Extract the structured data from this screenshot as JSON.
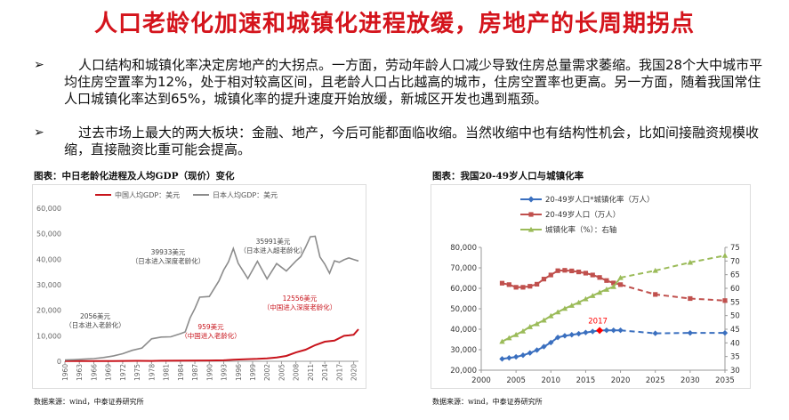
{
  "title": "人口老龄化加速和城镇化进程放缓，房地产的长周期拐点",
  "bullets": [
    {
      "mark": "➢",
      "text": "人口结构和城镇化率决定房地产的大拐点。一方面，劳动年龄人口减少导致住房总量需求萎缩。我国28个大中城市平均住房空置率为12%，处于相对较高区间，且老龄人口占比越高的城市，住房空置率也更高。另一方面，随着我国常住人口城镇化率达到65%，城镇化率的提升速度开始放缓，新城区开发也遇到瓶颈。"
    },
    {
      "mark": "➢",
      "text": "过去市场上最大的两大板块：金融、地产，今后可能都面临收缩。当然收缩中也有结构性机会，比如间接融资规模收缩，直接融资比重可能会提高。"
    }
  ],
  "left_caption": "图表：中日老龄化进程及人均GDP（现价）变化",
  "left_source": "数据来源：wind，中泰证券研究所",
  "right_caption": "图表：我国20-49岁人口与城镇化率",
  "right_source": "数据来源：wind，中泰证券研究所",
  "colors": {
    "china": "#c8141c",
    "japan": "#8c8c8c",
    "blue": "#3a6fbf",
    "red": "#c0504d",
    "green": "#9bbb59",
    "marker": "#ff0000"
  },
  "chart_data": [
    {
      "type": "line",
      "title": "",
      "ylim": [
        0,
        60000
      ],
      "yticks": [
        "0",
        "10,000",
        "20,000",
        "30,000",
        "40,000",
        "50,000",
        "60,000"
      ],
      "xticks": [
        "1960",
        "1963",
        "1966",
        "1969",
        "1972",
        "1975",
        "1978",
        "1981",
        "1984",
        "1987",
        "1990",
        "1993",
        "1996",
        "1999",
        "2002",
        "2005",
        "2008",
        "2011",
        "2014",
        "2017",
        "2020"
      ],
      "series": [
        {
          "name": "中国人均GDP：美元",
          "x": [
            1960,
            1965,
            1970,
            1975,
            1978,
            1980,
            1985,
            1990,
            1993,
            1995,
            1998,
            2000,
            2002,
            2004,
            2006,
            2008,
            2010,
            2012,
            2014,
            2016,
            2018,
            2019,
            2020,
            2021
          ],
          "values": [
            90,
            100,
            110,
            180,
            156,
            195,
            294,
            318,
            377,
            610,
            829,
            959,
            1149,
            1509,
            2099,
            3468,
            4550,
            6301,
            7678,
            8094,
            9977,
            10144,
            10409,
            12556
          ]
        },
        {
          "name": "日本人均GDP：美元",
          "x": [
            1960,
            1962,
            1964,
            1966,
            1968,
            1970,
            1972,
            1974,
            1976,
            1978,
            1980,
            1982,
            1984,
            1985,
            1986,
            1987,
            1988,
            1990,
            1992,
            1993,
            1994,
            1995,
            1996,
            1998,
            2000,
            2002,
            2004,
            2006,
            2008,
            2009,
            2010,
            2011,
            2012,
            2013,
            2014,
            2015,
            2016,
            2017,
            2018,
            2019,
            2020,
            2021
          ],
          "values": [
            480,
            640,
            840,
            1060,
            1450,
            2056,
            2950,
            4280,
            5200,
            8800,
            9500,
            9600,
            10800,
            11500,
            17000,
            20700,
            25100,
            25400,
            31500,
            35800,
            39000,
            44200,
            38400,
            32400,
            39200,
            32300,
            38300,
            35400,
            39300,
            41000,
            44700,
            48800,
            49000,
            40900,
            38100,
            34500,
            39400,
            38800,
            39800,
            40500,
            39900,
            39300
          ]
        }
      ],
      "annotations": [
        {
          "value": "2056美元",
          "label": "（日本进入老龄化）"
        },
        {
          "value": "39933美元",
          "label": "（日本进入深度老龄化）"
        },
        {
          "value": "35991美元",
          "label": "（日本进入超老龄化）"
        },
        {
          "value": "959美元",
          "label": "（中国进入老龄化）"
        },
        {
          "value": "12556美元",
          "label": "（中国进入深度老龄化）"
        }
      ],
      "legend_position": "top-left"
    },
    {
      "type": "line",
      "title": "",
      "ylim": [
        20000,
        80000
      ],
      "y2lim": [
        30,
        75
      ],
      "yticks": [
        "20,000",
        "30,000",
        "40,000",
        "50,000",
        "60,000",
        "70,000",
        "80,000"
      ],
      "y2ticks": [
        "30",
        "35",
        "40",
        "45",
        "50",
        "55",
        "60",
        "65",
        "70",
        "75"
      ],
      "xticks": [
        "2000",
        "2005",
        "2010",
        "2015",
        "2020",
        "2025",
        "2030",
        "2035"
      ],
      "xlim": [
        2000,
        2035
      ],
      "series": [
        {
          "name": "20-49岁人口*城镇化率（万人）",
          "axis": "left",
          "x": [
            2003,
            2004,
            2005,
            2006,
            2007,
            2008,
            2009,
            2010,
            2011,
            2012,
            2013,
            2014,
            2015,
            2016,
            2017,
            2018,
            2019,
            2020,
            2025,
            2030,
            2035
          ],
          "values": [
            25500,
            26000,
            26500,
            27300,
            28400,
            29800,
            31500,
            33500,
            36000,
            36800,
            37300,
            37800,
            38400,
            38900,
            39400,
            39500,
            39500,
            39500,
            38000,
            38200,
            38200
          ]
        },
        {
          "name": "20-49岁人口（万人）",
          "axis": "left",
          "x": [
            2003,
            2004,
            2005,
            2006,
            2007,
            2008,
            2009,
            2010,
            2011,
            2012,
            2013,
            2014,
            2015,
            2016,
            2017,
            2018,
            2019,
            2020,
            2025,
            2030,
            2035
          ],
          "values": [
            62500,
            61800,
            60500,
            60500,
            61000,
            62000,
            64500,
            66500,
            68600,
            68800,
            68500,
            68000,
            67400,
            66500,
            65300,
            63800,
            62600,
            61800,
            57000,
            55000,
            54000
          ]
        },
        {
          "name": "城镇化率（%）：右轴",
          "axis": "right",
          "x": [
            2003,
            2004,
            2005,
            2006,
            2007,
            2008,
            2009,
            2010,
            2011,
            2012,
            2013,
            2014,
            2015,
            2016,
            2017,
            2018,
            2019,
            2020,
            2025,
            2030,
            2035
          ],
          "values": [
            40.5,
            41.8,
            43,
            44.3,
            45.9,
            47,
            48.3,
            49.9,
            51.3,
            52.6,
            53.7,
            54.8,
            56.1,
            57.3,
            58.5,
            59.6,
            60.6,
            63.9,
            66.5,
            69.5,
            72
          ]
        }
      ],
      "highlight": {
        "label": "2017",
        "x": 2017,
        "series": 0
      },
      "legend_position": "top-left"
    }
  ]
}
